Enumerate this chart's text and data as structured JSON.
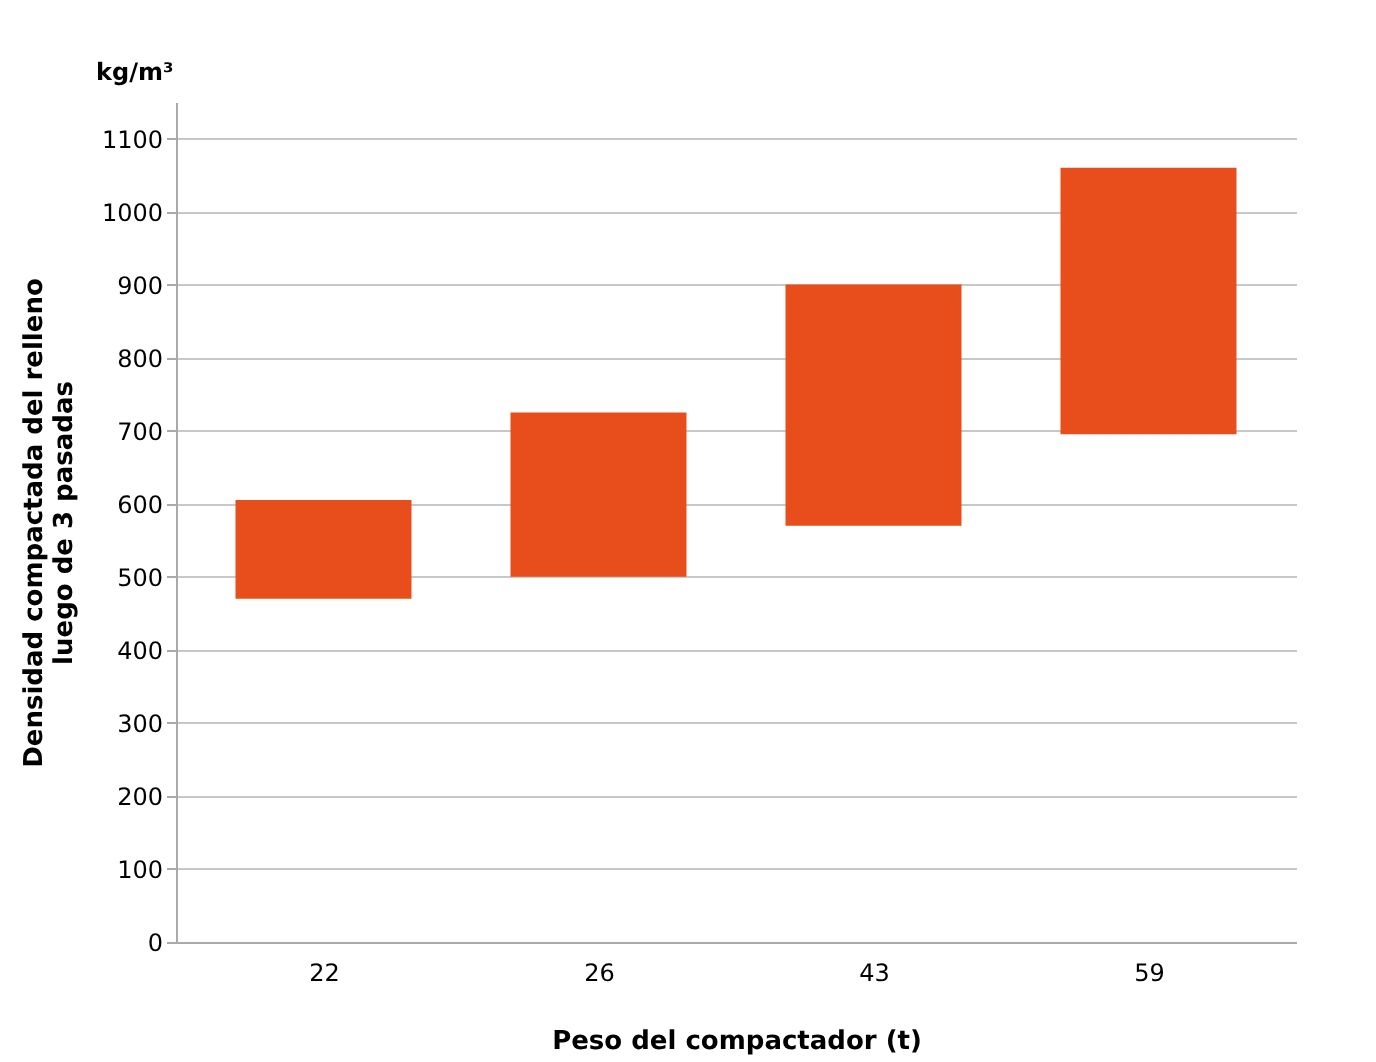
{
  "chart_data": {
    "type": "bar",
    "categories": [
      "22",
      "26",
      "43",
      "59"
    ],
    "base": [
      470,
      500,
      570,
      695
    ],
    "values": [
      135,
      225,
      330,
      365
    ],
    "color": "#e84e1b",
    "xlabel": "Peso del compactador (t)",
    "ylabel": "Densidad compactada del relleno\nluego de 3 pasadas",
    "annotations": [
      "kg/m³"
    ],
    "ylim": [
      0,
      1150
    ],
    "yticks": [
      0,
      100,
      200,
      300,
      400,
      500,
      600,
      700,
      800,
      900,
      1000,
      1100
    ],
    "grid": "y"
  }
}
